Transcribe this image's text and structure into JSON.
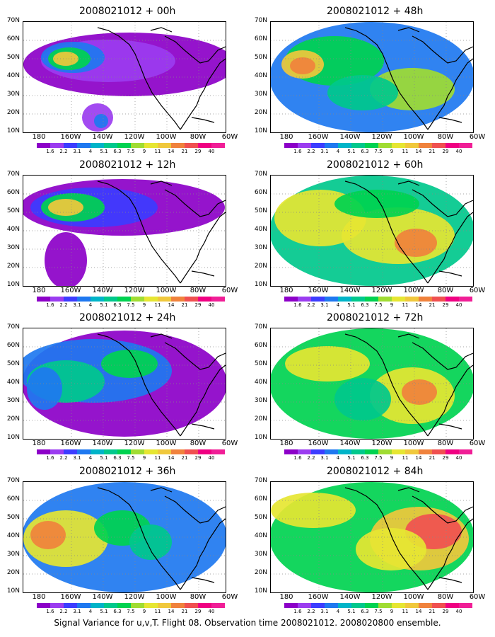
{
  "panels": [
    {
      "title": "2008021012 + 00h"
    },
    {
      "title": "2008021012 + 48h"
    },
    {
      "title": "2008021012 + 12h"
    },
    {
      "title": "2008021012 + 60h"
    },
    {
      "title": "2008021012 + 24h"
    },
    {
      "title": "2008021012 + 72h"
    },
    {
      "title": "2008021012 + 36h"
    },
    {
      "title": "2008021012 + 84h"
    }
  ],
  "y_ticks": [
    "70N",
    "60N",
    "50N",
    "40N",
    "30N",
    "20N",
    "10N"
  ],
  "x_ticks": [
    "180",
    "160W",
    "140W",
    "120W",
    "100W",
    "80W",
    "60W"
  ],
  "colorbar": {
    "labels": [
      "1.6",
      "2.2",
      "3.1",
      "4",
      "5.1",
      "6.3",
      "7.5",
      "9",
      "11",
      "14",
      "21",
      "29",
      "40"
    ],
    "colors": [
      "#8c00c8",
      "#9b3cf0",
      "#3c3cff",
      "#1e78f0",
      "#00b4c8",
      "#00c88c",
      "#00d250",
      "#a0dc32",
      "#e6e632",
      "#f0c83c",
      "#f0823c",
      "#f05050",
      "#f00082",
      "#f01e96"
    ]
  },
  "caption": "Signal Variance for u,v,T. Flight 08. Observation time 2008021012. 2008020800 ensemble."
}
